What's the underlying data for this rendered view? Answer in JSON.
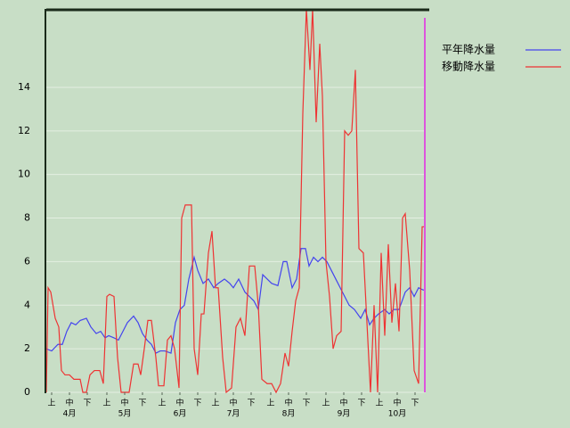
{
  "chart_data": {
    "type": "line",
    "xlim": [
      0,
      213
    ],
    "ylim": [
      0,
      17.6
    ],
    "yticks": [
      0,
      2,
      4,
      6,
      8,
      10,
      12,
      14
    ],
    "xticks": [
      {
        "value": 3,
        "label": "上"
      },
      {
        "value": 13,
        "label": "中"
      },
      {
        "value": 23,
        "label": "下"
      },
      {
        "value": 34,
        "label": "上"
      },
      {
        "value": 44,
        "label": "中"
      },
      {
        "value": 54,
        "label": "下"
      },
      {
        "value": 65,
        "label": "上"
      },
      {
        "value": 75,
        "label": "中"
      },
      {
        "value": 85,
        "label": "下"
      },
      {
        "value": 95,
        "label": "上"
      },
      {
        "value": 105,
        "label": "中"
      },
      {
        "value": 115,
        "label": "下"
      },
      {
        "value": 126,
        "label": "上"
      },
      {
        "value": 136,
        "label": "中"
      },
      {
        "value": 146,
        "label": "下"
      },
      {
        "value": 157,
        "label": "上"
      },
      {
        "value": 167,
        "label": "中"
      },
      {
        "value": 177,
        "label": "下"
      },
      {
        "value": 187,
        "label": "上"
      },
      {
        "value": 197,
        "label": "中"
      },
      {
        "value": 207,
        "label": "下"
      }
    ],
    "month_ticks": [
      {
        "value": 13,
        "label": "4月"
      },
      {
        "value": 44,
        "label": "5月"
      },
      {
        "value": 75,
        "label": "6月"
      },
      {
        "value": 105,
        "label": "7月"
      },
      {
        "value": 136,
        "label": "8月"
      },
      {
        "value": 167,
        "label": "9月"
      },
      {
        "value": 197,
        "label": "10月"
      }
    ],
    "grid": true,
    "series": [
      {
        "name": "平年降水量",
        "color": "#4444ee",
        "x": [
          0,
          3,
          6.5,
          9,
          11.5,
          14,
          16.5,
          19,
          22.5,
          25,
          28,
          30.5,
          33,
          35,
          38,
          40.5,
          43,
          45.5,
          49,
          51.5,
          54,
          56.5,
          59,
          61.5,
          64,
          66.5,
          70,
          72.5,
          75,
          77.5,
          80,
          83,
          85,
          88,
          91,
          94,
          96.5,
          100,
          103,
          105,
          108,
          111.5,
          114,
          116.5,
          119,
          121.5,
          124,
          126.5,
          130,
          133,
          135,
          138,
          140.5,
          143,
          145.5,
          147.5,
          150,
          152.5,
          155,
          157.5,
          160,
          162.5,
          165,
          167.5,
          170,
          173,
          176.5,
          179,
          181.5,
          184,
          186.5,
          190,
          192.5,
          195,
          198,
          201.5,
          204,
          206.5,
          209,
          211.5,
          213
        ],
        "values": [
          2.0,
          1.9,
          2.2,
          2.2,
          2.8,
          3.2,
          3.1,
          3.3,
          3.4,
          3.0,
          2.7,
          2.8,
          2.5,
          2.6,
          2.5,
          2.4,
          2.8,
          3.2,
          3.5,
          3.2,
          2.7,
          2.4,
          2.2,
          1.8,
          1.9,
          1.9,
          1.8,
          3.2,
          3.8,
          4.0,
          5.2,
          6.2,
          5.6,
          5.0,
          5.2,
          4.8,
          5.0,
          5.2,
          5.0,
          4.8,
          5.2,
          4.6,
          4.4,
          4.2,
          3.8,
          5.4,
          5.2,
          5.0,
          4.9,
          6.0,
          6.0,
          4.8,
          5.2,
          6.6,
          6.6,
          5.8,
          6.2,
          6.0,
          6.2,
          6.0,
          5.6,
          5.2,
          4.8,
          4.4,
          4.0,
          3.8,
          3.4,
          3.8,
          3.1,
          3.4,
          3.6,
          3.8,
          3.6,
          3.8,
          3.8,
          4.6,
          4.8,
          4.4,
          4.8,
          4.7,
          4.7
        ]
      },
      {
        "name": "移動降水量",
        "color": "#ee3333",
        "x": [
          0,
          1,
          2.5,
          5,
          7,
          8.5,
          10.5,
          13,
          15.5,
          19,
          20.5,
          22.5,
          24.5,
          27,
          30,
          32,
          34,
          35.5,
          38,
          40,
          42,
          46.5,
          49,
          51.5,
          53,
          55,
          57,
          59,
          61.5,
          63,
          66,
          68,
          70,
          72,
          74.5,
          76,
          78,
          81.5,
          83,
          85,
          87,
          88.5,
          91,
          93,
          95,
          96.5,
          99,
          101,
          104,
          106.5,
          109,
          111.5,
          114,
          117,
          119,
          121,
          124,
          126.5,
          129,
          131.5,
          134,
          136,
          138,
          140,
          142,
          144,
          146,
          148,
          149.5,
          151.5,
          153.5,
          155,
          157,
          159,
          161,
          163,
          165.5,
          167.5,
          169.5,
          171.5,
          173.5,
          175.5,
          178,
          180,
          182,
          184,
          186,
          188,
          190,
          192,
          194,
          196,
          198,
          200,
          201.5,
          204,
          206.5,
          209,
          211,
          213
        ],
        "values": [
          0,
          4.8,
          4.6,
          3.4,
          3.0,
          1.0,
          0.8,
          0.8,
          0.6,
          0.6,
          0,
          0,
          0.8,
          1.0,
          1.0,
          0.4,
          4.4,
          4.5,
          4.4,
          1.6,
          0,
          0,
          1.3,
          1.3,
          0.8,
          2.0,
          3.3,
          3.3,
          1.6,
          0.3,
          0.3,
          2.4,
          2.6,
          2.0,
          0.2,
          8.0,
          8.6,
          8.6,
          2.0,
          0.8,
          3.6,
          3.6,
          6.4,
          7.4,
          4.8,
          4.8,
          1.6,
          0,
          0.2,
          3.0,
          3.4,
          2.6,
          5.8,
          5.8,
          4.0,
          0.6,
          0.4,
          0.4,
          0,
          0.4,
          1.8,
          1.2,
          2.8,
          4.2,
          4.8,
          12.8,
          17.6,
          14.8,
          17.6,
          12.4,
          16.0,
          13.6,
          6.0,
          4.4,
          2.0,
          2.6,
          2.8,
          12.0,
          11.8,
          12.0,
          14.8,
          6.6,
          6.4,
          3.2,
          0,
          4.0,
          0,
          6.4,
          2.6,
          6.8,
          3.2,
          5.0,
          2.8,
          8.0,
          8.2,
          5.6,
          1.0,
          0.4,
          7.6,
          7.6
        ]
      }
    ]
  }
}
